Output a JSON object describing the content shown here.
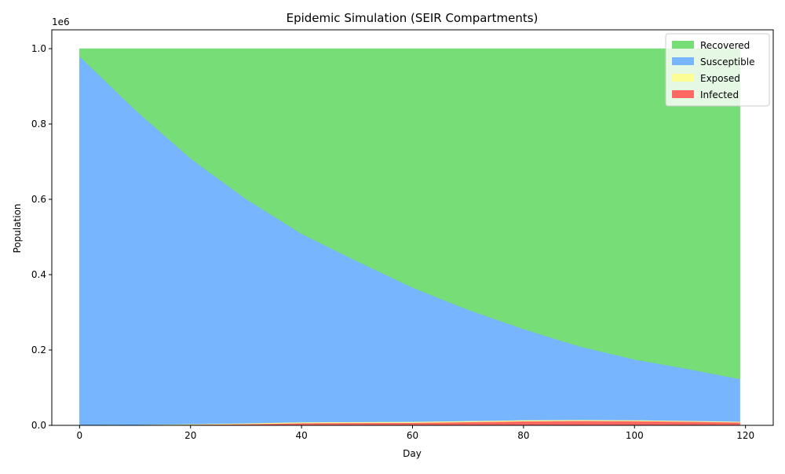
{
  "chart_data": {
    "type": "area",
    "stacked": true,
    "title": "Epidemic Simulation (SEIR Compartments)",
    "xlabel": "Day",
    "ylabel": "Population",
    "y_offset_label": "1e6",
    "xlim": [
      -5,
      125
    ],
    "ylim": [
      0,
      1050000
    ],
    "xticks": [
      0,
      20,
      40,
      60,
      80,
      100,
      120
    ],
    "yticks": [
      0,
      200000,
      400000,
      600000,
      800000,
      1000000
    ],
    "ytick_labels": [
      "0.0",
      "0.2",
      "0.4",
      "0.6",
      "0.8",
      "1.0"
    ],
    "grid": false,
    "legend_position": "top-right",
    "x": [
      0,
      10,
      20,
      30,
      40,
      50,
      60,
      70,
      80,
      90,
      100,
      110,
      119
    ],
    "series": [
      {
        "name": "Infected",
        "color": "#ff6961",
        "values": [
          200,
          1000,
          2000,
          3500,
          6000,
          6500,
          7000,
          9000,
          11000,
          12000,
          11500,
          10000,
          8000
        ]
      },
      {
        "name": "Exposed",
        "color": "#fdfd96",
        "values": [
          300,
          800,
          1500,
          2000,
          2500,
          2600,
          2700,
          2800,
          2800,
          2700,
          2500,
          2200,
          2000
        ]
      },
      {
        "name": "Susceptible",
        "color": "#77b5fe",
        "values": [
          979500,
          836200,
          705500,
          595500,
          500500,
          426900,
          356300,
          295200,
          242200,
          195300,
          161000,
          136800,
          113000
        ]
      },
      {
        "name": "Recovered",
        "color": "#77dd77",
        "values": [
          20000,
          162000,
          291000,
          399000,
          491000,
          564000,
          634000,
          693000,
          744000,
          790000,
          825000,
          851000,
          877000
        ]
      }
    ]
  }
}
